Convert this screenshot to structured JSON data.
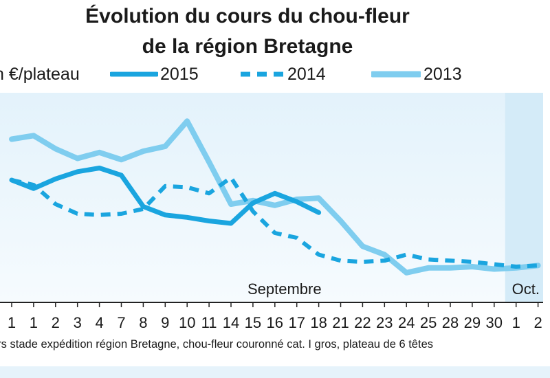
{
  "title_lines": [
    "Évolution du cours du chou-fleur",
    "de la région Bretagne"
  ],
  "legend": {
    "unit": "n €/plateau",
    "items": [
      {
        "label": "2015",
        "color": "#1aa5df",
        "style": "solid"
      },
      {
        "label": "2014",
        "color": "#1aa5df",
        "style": "dashed"
      },
      {
        "label": "2013",
        "color": "#7fcdef",
        "style": "solid"
      }
    ]
  },
  "caption": "urs stade expédition région Bretagne, chou-fleur couronné cat. I gros, plateau de 6 têtes",
  "chart_data": {
    "type": "line",
    "categories": [
      "1",
      "1",
      "2",
      "3",
      "4",
      "7",
      "8",
      "9",
      "10",
      "11",
      "14",
      "15",
      "16",
      "17",
      "18",
      "21",
      "22",
      "23",
      "24",
      "25",
      "28",
      "29",
      "30",
      "1",
      "2"
    ],
    "period_labels": [
      {
        "label": "Septembre",
        "at_index": 14
      },
      {
        "label": "Oct.",
        "at_index": 24
      }
    ],
    "series": [
      {
        "name": "2015",
        "style": "solid",
        "color": "#1aa5df",
        "values": [
          11.6,
          10.9,
          11.7,
          12.3,
          12.6,
          12.0,
          9.4,
          8.7,
          8.5,
          8.2,
          8.0,
          9.7,
          10.5,
          9.8,
          8.9,
          null,
          null,
          null,
          null,
          null,
          null,
          null,
          null,
          null,
          null
        ]
      },
      {
        "name": "2014",
        "style": "dashed",
        "color": "#1aa5df",
        "values": [
          11.6,
          11.2,
          9.6,
          8.8,
          8.7,
          8.8,
          9.2,
          11.1,
          11.0,
          10.5,
          11.8,
          9.0,
          7.2,
          6.8,
          5.4,
          4.9,
          4.8,
          4.9,
          5.4,
          5.0,
          4.9,
          4.8,
          4.6,
          4.4,
          4.5
        ]
      },
      {
        "name": "2013",
        "style": "solid",
        "color": "#7fcdef",
        "values": [
          15.0,
          15.3,
          14.2,
          13.4,
          13.9,
          13.3,
          14.0,
          14.4,
          16.5,
          13.1,
          9.6,
          9.9,
          9.5,
          10.0,
          10.1,
          8.2,
          6.1,
          5.4,
          3.9,
          4.3,
          4.3,
          4.4,
          4.2,
          4.3,
          4.5
        ]
      }
    ],
    "ylim": [
      2,
      18
    ],
    "grid": false
  }
}
